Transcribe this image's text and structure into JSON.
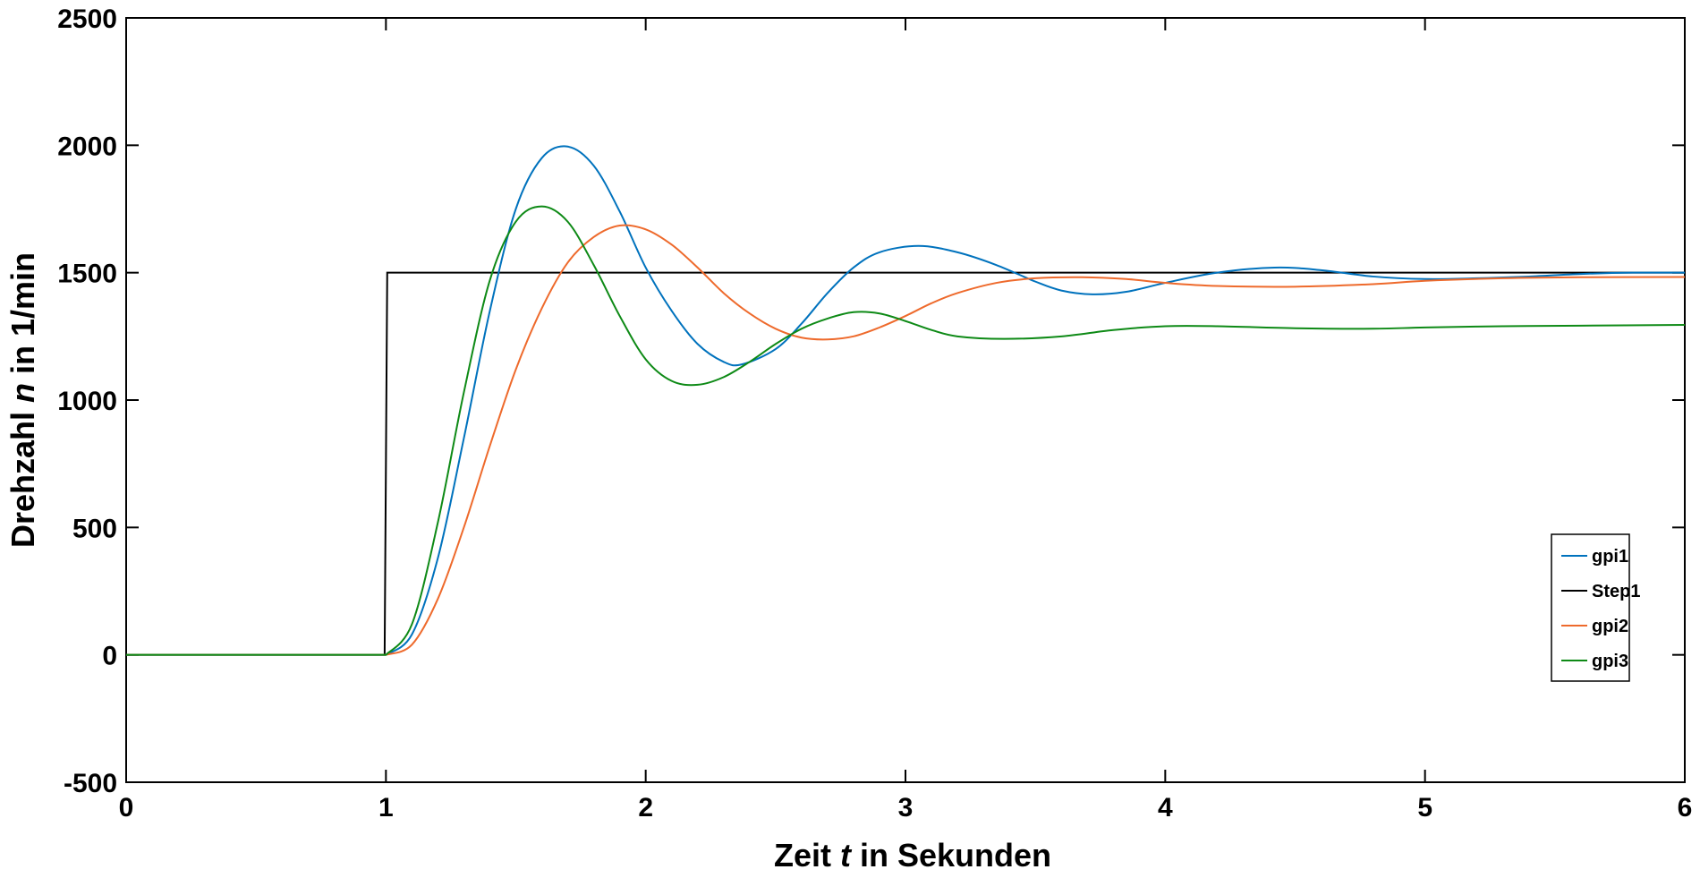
{
  "chart_data": {
    "type": "line",
    "title": "",
    "xlabel": {
      "prefix": "Zeit ",
      "var": "t",
      "suffix": " in Sekunden"
    },
    "ylabel": {
      "prefix": "Drehzahl ",
      "var": "n",
      "suffix": " in 1/min"
    },
    "xlim": [
      0,
      6
    ],
    "ylim": [
      -500,
      2500
    ],
    "xticks": [
      0,
      1,
      2,
      3,
      4,
      5,
      6
    ],
    "yticks": [
      -500,
      0,
      500,
      1000,
      1500,
      2000,
      2500
    ],
    "grid": false,
    "legend_position": "lower-right",
    "series": [
      {
        "name": "gpi1",
        "color": "#0072BD",
        "x": [
          0,
          1.0,
          1.1,
          1.2,
          1.3,
          1.4,
          1.5,
          1.6,
          1.7,
          1.8,
          1.9,
          2.0,
          2.1,
          2.2,
          2.3,
          2.37,
          2.5,
          2.6,
          2.7,
          2.8,
          2.9,
          3.05,
          3.2,
          3.35,
          3.5,
          3.6,
          3.72,
          3.85,
          4.0,
          4.2,
          4.42,
          4.6,
          4.8,
          5.0,
          5.2,
          5.4,
          5.6,
          5.8,
          6.0
        ],
        "y": [
          0,
          0,
          80,
          380,
          850,
          1350,
          1750,
          1950,
          1995,
          1920,
          1740,
          1520,
          1350,
          1220,
          1150,
          1140,
          1200,
          1300,
          1420,
          1520,
          1580,
          1605,
          1580,
          1530,
          1465,
          1430,
          1415,
          1425,
          1460,
          1500,
          1520,
          1510,
          1485,
          1475,
          1478,
          1485,
          1495,
          1500,
          1500
        ]
      },
      {
        "name": "Step1",
        "color": "#000000",
        "x": [
          0,
          0.995,
          1.005,
          6.0
        ],
        "y": [
          0,
          0,
          1500,
          1500
        ]
      },
      {
        "name": "gpi2",
        "color": "#EE6A2C",
        "x": [
          0,
          1.0,
          1.1,
          1.2,
          1.3,
          1.4,
          1.5,
          1.6,
          1.7,
          1.8,
          1.9,
          2.0,
          2.1,
          2.2,
          2.3,
          2.4,
          2.5,
          2.6,
          2.7,
          2.8,
          2.9,
          3.0,
          3.1,
          3.2,
          3.35,
          3.5,
          3.68,
          3.85,
          4.0,
          4.2,
          4.5,
          4.8,
          5.0,
          5.3,
          5.6,
          6.0
        ],
        "y": [
          0,
          0,
          40,
          220,
          500,
          820,
          1120,
          1360,
          1540,
          1640,
          1685,
          1670,
          1610,
          1520,
          1420,
          1340,
          1280,
          1245,
          1238,
          1250,
          1285,
          1330,
          1380,
          1420,
          1460,
          1478,
          1482,
          1475,
          1460,
          1448,
          1445,
          1455,
          1468,
          1478,
          1482,
          1483
        ]
      },
      {
        "name": "gpi3",
        "color": "#0E8A16",
        "x": [
          0,
          1.0,
          1.1,
          1.2,
          1.3,
          1.4,
          1.5,
          1.6,
          1.7,
          1.8,
          1.9,
          2.0,
          2.1,
          2.2,
          2.3,
          2.4,
          2.5,
          2.6,
          2.7,
          2.8,
          2.9,
          3.0,
          3.1,
          3.2,
          3.38,
          3.6,
          3.8,
          4.0,
          4.2,
          4.5,
          4.8,
          5.0,
          5.3,
          5.6,
          6.0
        ],
        "y": [
          0,
          0,
          120,
          520,
          1030,
          1470,
          1700,
          1760,
          1700,
          1530,
          1330,
          1160,
          1075,
          1060,
          1090,
          1150,
          1220,
          1280,
          1320,
          1345,
          1340,
          1310,
          1275,
          1250,
          1240,
          1250,
          1275,
          1290,
          1290,
          1282,
          1280,
          1285,
          1290,
          1292,
          1295
        ]
      }
    ]
  }
}
